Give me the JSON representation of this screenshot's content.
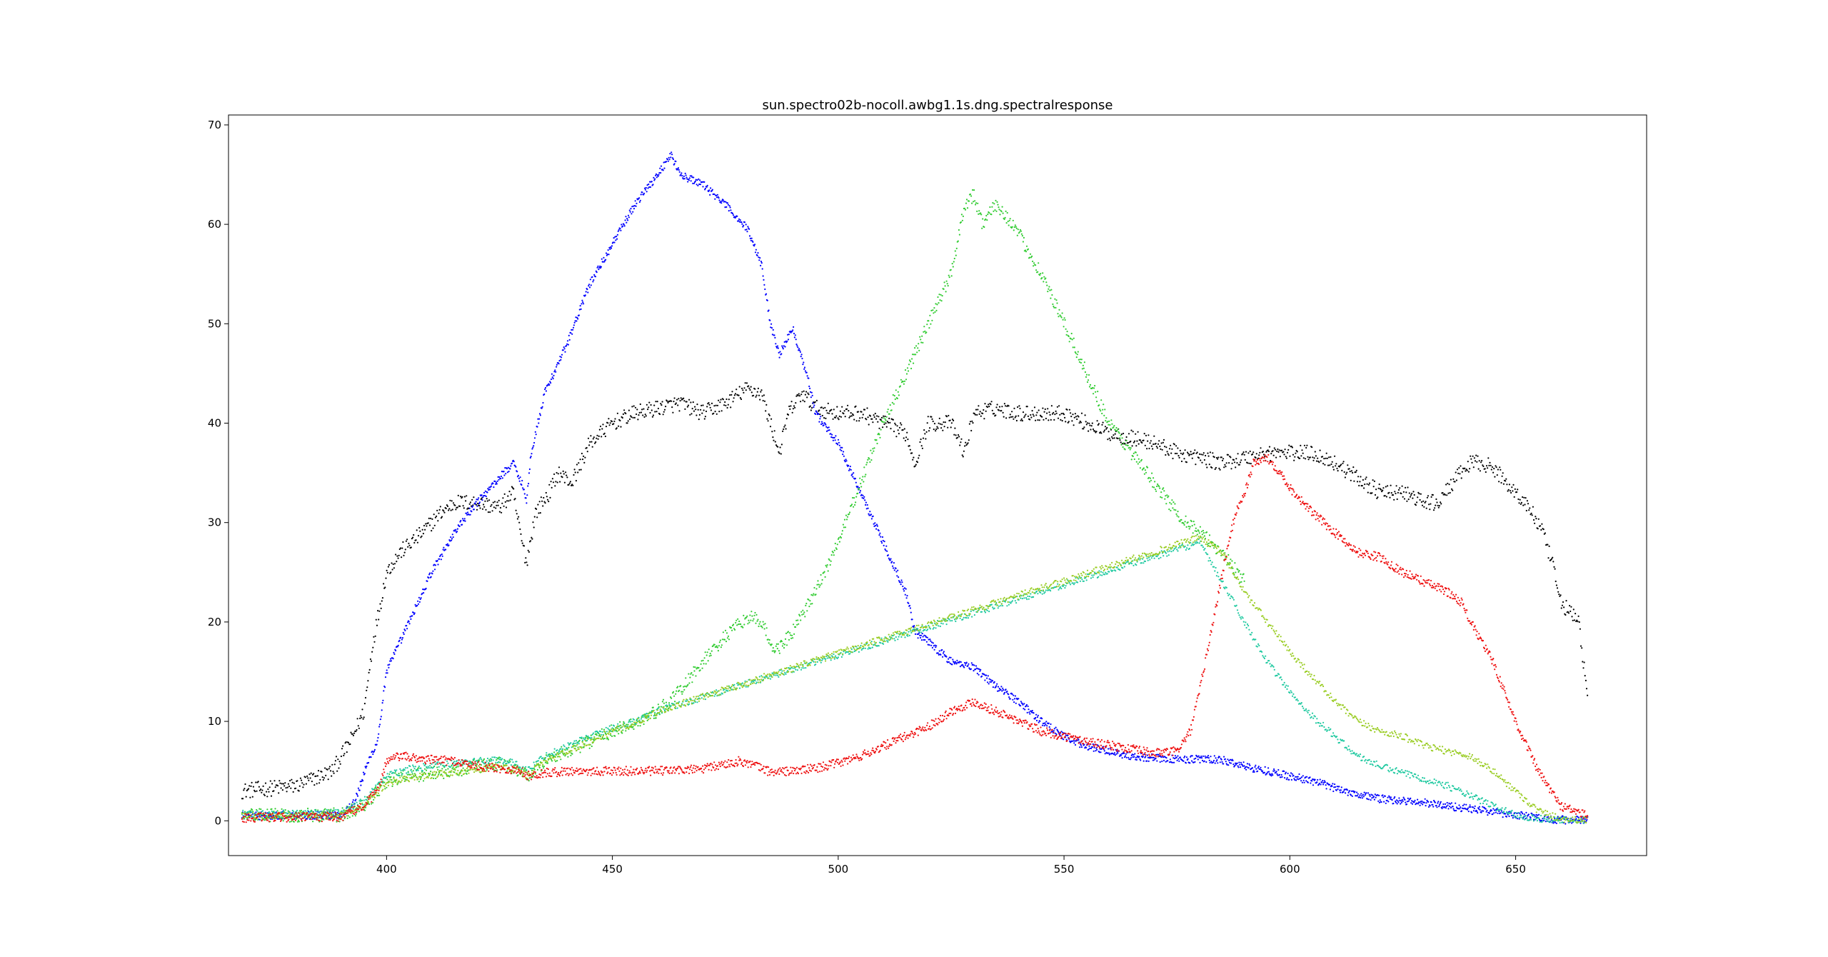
{
  "chart_data": {
    "type": "scatter",
    "title": "sun.spectro02b-nocoll.awbg1.1s.dng.spectralresponse",
    "xlabel": "",
    "ylabel": "",
    "xlim": [
      365,
      679
    ],
    "ylim": [
      -3.5,
      71
    ],
    "xticks": [
      400,
      450,
      500,
      550,
      600,
      650
    ],
    "yticks": [
      0,
      10,
      20,
      30,
      40,
      50,
      60,
      70
    ],
    "grid": false,
    "legend": "none",
    "x_range": [
      368,
      666
    ],
    "series": [
      {
        "color": "#000000",
        "anchors": [
          [
            368,
            3
          ],
          [
            380,
            3.5
          ],
          [
            388,
            5
          ],
          [
            392,
            8
          ],
          [
            395,
            11
          ],
          [
            397,
            18
          ],
          [
            400,
            25
          ],
          [
            403,
            27
          ],
          [
            408,
            29
          ],
          [
            412,
            31
          ],
          [
            415,
            32
          ],
          [
            420,
            32
          ],
          [
            425,
            31.5
          ],
          [
            428,
            33
          ],
          [
            430,
            28
          ],
          [
            431,
            26
          ],
          [
            433,
            31
          ],
          [
            436,
            33
          ],
          [
            438,
            35
          ],
          [
            441,
            34
          ],
          [
            445,
            38
          ],
          [
            450,
            40
          ],
          [
            455,
            41
          ],
          [
            460,
            41.5
          ],
          [
            465,
            42
          ],
          [
            470,
            41
          ],
          [
            475,
            42
          ],
          [
            480,
            43.5
          ],
          [
            483,
            43
          ],
          [
            485,
            40
          ],
          [
            487,
            37
          ],
          [
            489,
            41
          ],
          [
            492,
            43
          ],
          [
            495,
            41.5
          ],
          [
            500,
            41
          ],
          [
            505,
            41
          ],
          [
            510,
            40
          ],
          [
            515,
            39
          ],
          [
            517,
            36
          ],
          [
            520,
            40
          ],
          [
            525,
            40
          ],
          [
            528,
            37
          ],
          [
            530,
            41
          ],
          [
            535,
            41.5
          ],
          [
            540,
            41
          ],
          [
            545,
            41
          ],
          [
            550,
            41
          ],
          [
            555,
            40
          ],
          [
            560,
            39
          ],
          [
            565,
            38.5
          ],
          [
            570,
            38
          ],
          [
            575,
            37
          ],
          [
            580,
            36.5
          ],
          [
            585,
            36
          ],
          [
            590,
            36.5
          ],
          [
            595,
            37
          ],
          [
            600,
            37
          ],
          [
            605,
            37
          ],
          [
            610,
            36
          ],
          [
            615,
            34.5
          ],
          [
            620,
            33
          ],
          [
            625,
            33
          ],
          [
            630,
            32
          ],
          [
            633,
            32
          ],
          [
            636,
            34
          ],
          [
            640,
            36
          ],
          [
            643,
            36
          ],
          [
            646,
            35
          ],
          [
            650,
            33
          ],
          [
            653,
            31.5
          ],
          [
            656,
            29
          ],
          [
            658,
            26
          ],
          [
            660,
            22
          ],
          [
            662,
            21
          ],
          [
            664,
            20
          ],
          [
            666,
            12
          ]
        ],
        "noise": 0.8,
        "step": 0.18
      },
      {
        "color": "#0000ff",
        "anchors": [
          [
            368,
            0.5
          ],
          [
            390,
            0.6
          ],
          [
            393,
            2
          ],
          [
            396,
            6
          ],
          [
            398,
            8
          ],
          [
            400,
            15
          ],
          [
            405,
            20
          ],
          [
            410,
            25
          ],
          [
            415,
            29
          ],
          [
            420,
            32
          ],
          [
            425,
            34.5
          ],
          [
            428,
            36
          ],
          [
            430,
            34
          ],
          [
            431,
            32
          ],
          [
            432,
            37
          ],
          [
            435,
            43
          ],
          [
            438,
            46
          ],
          [
            440,
            48
          ],
          [
            445,
            54
          ],
          [
            450,
            58
          ],
          [
            455,
            62
          ],
          [
            460,
            65
          ],
          [
            463,
            67
          ],
          [
            465,
            65
          ],
          [
            470,
            64
          ],
          [
            475,
            62
          ],
          [
            480,
            59.5
          ],
          [
            483,
            56
          ],
          [
            485,
            50
          ],
          [
            487,
            47
          ],
          [
            490,
            49.5
          ],
          [
            493,
            45
          ],
          [
            495,
            41
          ],
          [
            500,
            38
          ],
          [
            505,
            33
          ],
          [
            510,
            28
          ],
          [
            515,
            23
          ],
          [
            517,
            19
          ],
          [
            520,
            18
          ],
          [
            525,
            16
          ],
          [
            530,
            15.5
          ],
          [
            535,
            13.5
          ],
          [
            540,
            12
          ],
          [
            545,
            10
          ],
          [
            550,
            8.5
          ],
          [
            555,
            7.5
          ],
          [
            560,
            7
          ],
          [
            565,
            6.5
          ],
          [
            570,
            6.3
          ],
          [
            575,
            6.2
          ],
          [
            580,
            6.2
          ],
          [
            585,
            6.1
          ],
          [
            590,
            5.5
          ],
          [
            595,
            5
          ],
          [
            600,
            4.5
          ],
          [
            605,
            4
          ],
          [
            610,
            3.3
          ],
          [
            615,
            2.7
          ],
          [
            620,
            2.2
          ],
          [
            625,
            2
          ],
          [
            630,
            1.8
          ],
          [
            635,
            1.5
          ],
          [
            640,
            1.2
          ],
          [
            645,
            0.9
          ],
          [
            650,
            0.6
          ],
          [
            655,
            0.3
          ],
          [
            660,
            0.1
          ],
          [
            666,
            0.05
          ]
        ],
        "noise": 0.4,
        "step": 0.14
      },
      {
        "color": "#33cc33",
        "anchors": [
          [
            368,
            0.5
          ],
          [
            390,
            0.6
          ],
          [
            395,
            1.5
          ],
          [
            400,
            4
          ],
          [
            405,
            4.5
          ],
          [
            410,
            4.8
          ],
          [
            415,
            5
          ],
          [
            420,
            5.5
          ],
          [
            425,
            5.8
          ],
          [
            430,
            5
          ],
          [
            431,
            4.5
          ],
          [
            435,
            6
          ],
          [
            440,
            7
          ],
          [
            445,
            8
          ],
          [
            450,
            9
          ],
          [
            455,
            9.8
          ],
          [
            460,
            11
          ],
          [
            465,
            13
          ],
          [
            470,
            16
          ],
          [
            475,
            18.5
          ],
          [
            480,
            20.5
          ],
          [
            483,
            20
          ],
          [
            486,
            17
          ],
          [
            488,
            18
          ],
          [
            490,
            19
          ],
          [
            495,
            23
          ],
          [
            500,
            28
          ],
          [
            505,
            34
          ],
          [
            510,
            40
          ],
          [
            515,
            45
          ],
          [
            518,
            48
          ],
          [
            520,
            50
          ],
          [
            525,
            55
          ],
          [
            528,
            62
          ],
          [
            530,
            63
          ],
          [
            532,
            60
          ],
          [
            535,
            62
          ],
          [
            537,
            61
          ],
          [
            540,
            59
          ],
          [
            545,
            55
          ],
          [
            550,
            50
          ],
          [
            555,
            45
          ],
          [
            560,
            40
          ],
          [
            565,
            37
          ],
          [
            570,
            34
          ],
          [
            575,
            31
          ],
          [
            580,
            29
          ],
          [
            585,
            27
          ],
          [
            590,
            24
          ]
        ],
        "noise": 0.7,
        "step": 0.16
      },
      {
        "color": "#1fc9a0",
        "anchors": [
          [
            368,
            0.7
          ],
          [
            390,
            0.8
          ],
          [
            395,
            2
          ],
          [
            400,
            4.5
          ],
          [
            405,
            5.2
          ],
          [
            410,
            5.5
          ],
          [
            415,
            5.8
          ],
          [
            420,
            6
          ],
          [
            425,
            6.2
          ],
          [
            430,
            5.5
          ],
          [
            431,
            5
          ],
          [
            435,
            6.5
          ],
          [
            440,
            7.5
          ],
          [
            445,
            8.5
          ],
          [
            450,
            9.3
          ],
          [
            455,
            10
          ],
          [
            460,
            11
          ],
          [
            580,
            28
          ],
          [
            585,
            24
          ],
          [
            590,
            20
          ],
          [
            595,
            16
          ],
          [
            600,
            13
          ],
          [
            605,
            10.5
          ],
          [
            610,
            8.5
          ],
          [
            615,
            6.5
          ],
          [
            620,
            5.5
          ],
          [
            625,
            4.8
          ],
          [
            630,
            4.2
          ],
          [
            635,
            3.5
          ],
          [
            640,
            2.5
          ],
          [
            645,
            1.5
          ],
          [
            650,
            0.6
          ],
          [
            655,
            0.2
          ],
          [
            666,
            0.05
          ]
        ],
        "noise": 0.35,
        "step": 0.2
      },
      {
        "color": "#99cc22",
        "anchors": [
          [
            368,
            0.5
          ],
          [
            390,
            0.6
          ],
          [
            395,
            1.5
          ],
          [
            400,
            3.8
          ],
          [
            405,
            4.3
          ],
          [
            410,
            4.6
          ],
          [
            415,
            4.9
          ],
          [
            420,
            5.2
          ],
          [
            425,
            5.5
          ],
          [
            430,
            5
          ],
          [
            431,
            4.5
          ],
          [
            435,
            6
          ],
          [
            440,
            7
          ],
          [
            445,
            8
          ],
          [
            450,
            9
          ],
          [
            455,
            9.8
          ],
          [
            460,
            11
          ],
          [
            580,
            28.5
          ],
          [
            585,
            27
          ],
          [
            590,
            23
          ],
          [
            595,
            20
          ],
          [
            600,
            17
          ],
          [
            605,
            14.5
          ],
          [
            610,
            12
          ],
          [
            615,
            10
          ],
          [
            620,
            9
          ],
          [
            625,
            8.5
          ],
          [
            630,
            7.5
          ],
          [
            635,
            7
          ],
          [
            640,
            6.5
          ],
          [
            645,
            5
          ],
          [
            650,
            3
          ],
          [
            655,
            1
          ],
          [
            660,
            0.2
          ],
          [
            666,
            0.05
          ]
        ],
        "noise": 0.35,
        "step": 0.2
      },
      {
        "color": "#ee1111",
        "anchors": [
          [
            368,
            0.3
          ],
          [
            390,
            0.4
          ],
          [
            395,
            1.5
          ],
          [
            398,
            3
          ],
          [
            400,
            6
          ],
          [
            403,
            6.5
          ],
          [
            408,
            6.2
          ],
          [
            415,
            6
          ],
          [
            420,
            5.5
          ],
          [
            425,
            5.3
          ],
          [
            430,
            5
          ],
          [
            431,
            4.5
          ],
          [
            435,
            4.8
          ],
          [
            440,
            5
          ],
          [
            450,
            5
          ],
          [
            460,
            5
          ],
          [
            470,
            5.2
          ],
          [
            478,
            6
          ],
          [
            480,
            5.8
          ],
          [
            483,
            5.3
          ],
          [
            485,
            4.9
          ],
          [
            490,
            5
          ],
          [
            495,
            5.3
          ],
          [
            500,
            5.8
          ],
          [
            505,
            6.5
          ],
          [
            510,
            7.5
          ],
          [
            515,
            8.5
          ],
          [
            520,
            9.5
          ],
          [
            525,
            11
          ],
          [
            530,
            12
          ],
          [
            535,
            11
          ],
          [
            540,
            10
          ],
          [
            545,
            9
          ],
          [
            550,
            8.5
          ],
          [
            555,
            8
          ],
          [
            560,
            7.6
          ],
          [
            565,
            7.2
          ],
          [
            570,
            6.8
          ],
          [
            575,
            7
          ],
          [
            578,
            9
          ],
          [
            580,
            13
          ],
          [
            583,
            20
          ],
          [
            586,
            27
          ],
          [
            588,
            31
          ],
          [
            590,
            33
          ],
          [
            592,
            36
          ],
          [
            595,
            36.5
          ],
          [
            598,
            35
          ],
          [
            600,
            33.5
          ],
          [
            605,
            31
          ],
          [
            610,
            29
          ],
          [
            615,
            27
          ],
          [
            620,
            26.5
          ],
          [
            625,
            25
          ],
          [
            630,
            24
          ],
          [
            635,
            23
          ],
          [
            638,
            22
          ],
          [
            640,
            20
          ],
          [
            645,
            16
          ],
          [
            650,
            10
          ],
          [
            655,
            5
          ],
          [
            660,
            1.5
          ],
          [
            666,
            0.5
          ]
        ],
        "noise": 0.45,
        "step": 0.15
      }
    ]
  }
}
